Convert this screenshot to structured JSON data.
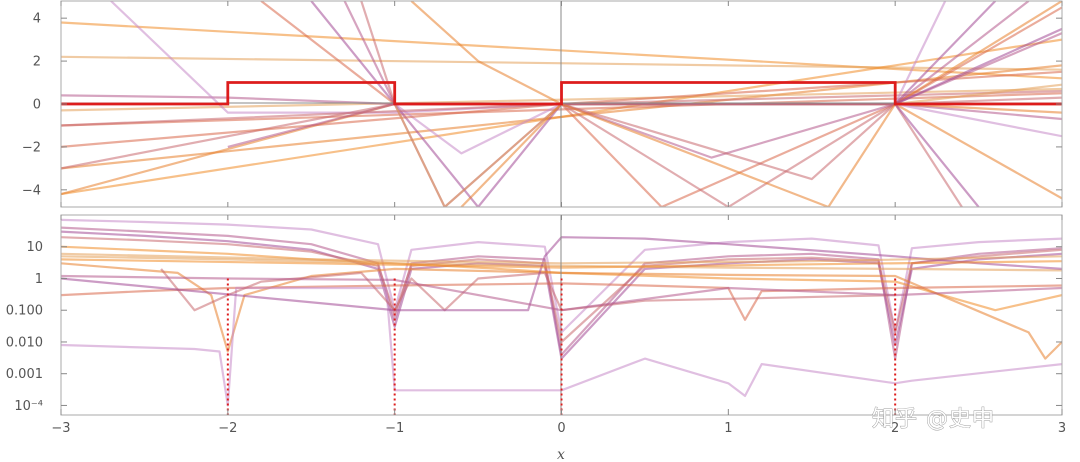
{
  "colors": {
    "indicator": "#dd1c1c",
    "palette": [
      "#f08c28",
      "#e8802c",
      "#d9674a",
      "#c96a70",
      "#b45a8c",
      "#a34a96",
      "#c78ac8",
      "#e3a05a"
    ]
  },
  "watermark": "知乎 @史中",
  "chart_data": [
    {
      "type": "line",
      "panel": "top",
      "xlabel": "",
      "ylabel": "",
      "xlim": [
        -3.0,
        3.0
      ],
      "ylim": [
        -4.8,
        4.8
      ],
      "xticks": [
        -3,
        -2,
        -1,
        0,
        1,
        2,
        3
      ],
      "yticks": [
        -4,
        -2,
        0,
        2,
        4
      ],
      "ytick_labels": [
        "−4",
        "−2",
        "0",
        "2",
        "4"
      ],
      "grid": false,
      "indicator": {
        "x": [
          -3,
          -2,
          -2,
          -1,
          -1,
          0,
          0,
          2,
          2,
          3
        ],
        "y": [
          0,
          0,
          1,
          1,
          0,
          0,
          1,
          1,
          0,
          0
        ]
      },
      "series": [
        {
          "style": 0,
          "x": [
            -3,
            3
          ],
          "y": [
            3.8,
            1.2
          ]
        },
        {
          "style": 7,
          "x": [
            -3,
            3
          ],
          "y": [
            2.2,
            1.6
          ]
        },
        {
          "style": 1,
          "x": [
            -3,
            3
          ],
          "y": [
            -3.0,
            1.8
          ]
        },
        {
          "style": 0,
          "x": [
            -3,
            3
          ],
          "y": [
            -4.2,
            3.0
          ]
        },
        {
          "style": 2,
          "x": [
            -3,
            3
          ],
          "y": [
            -1.0,
            0.5
          ]
        },
        {
          "style": 7,
          "x": [
            -3,
            3
          ],
          "y": [
            -0.3,
            0.7
          ]
        },
        {
          "style": 3,
          "x": [
            -3,
            -1,
            0,
            3
          ],
          "y": [
            -3.0,
            0.0,
            0.0,
            0.6
          ]
        },
        {
          "style": 1,
          "x": [
            -3,
            -1,
            0,
            2,
            3
          ],
          "y": [
            -4.2,
            0.0,
            0.0,
            0.0,
            4.8
          ]
        },
        {
          "style": 4,
          "x": [
            -3,
            -2,
            -1,
            0,
            2,
            3
          ],
          "y": [
            0.4,
            0.3,
            0.0,
            0.0,
            0.0,
            -0.7
          ]
        },
        {
          "style": 6,
          "x": [
            -2.7,
            -2,
            -1,
            0,
            2,
            2.3
          ],
          "y": [
            4.8,
            -0.4,
            -0.4,
            0.0,
            0.0,
            4.8
          ]
        },
        {
          "style": 5,
          "x": [
            -1.5,
            -1,
            0,
            2,
            2.6
          ],
          "y": [
            4.8,
            0.0,
            0.0,
            0.0,
            4.8
          ]
        },
        {
          "style": 4,
          "x": [
            -1.3,
            -1,
            -0.7,
            0,
            2,
            2.8
          ],
          "y": [
            4.8,
            0.0,
            -4.8,
            0.0,
            0.0,
            4.8
          ]
        },
        {
          "style": 2,
          "x": [
            -1.8,
            -1,
            0,
            0.6,
            2,
            3
          ],
          "y": [
            4.8,
            0.0,
            0.0,
            -4.8,
            0.0,
            4.5
          ]
        },
        {
          "style": 3,
          "x": [
            -1.2,
            -1,
            0,
            1.0,
            2,
            2.4
          ],
          "y": [
            4.8,
            0.0,
            0.0,
            -4.8,
            0.0,
            -4.8
          ]
        },
        {
          "style": 1,
          "x": [
            -0.9,
            -0.5,
            0,
            2,
            3
          ],
          "y": [
            4.8,
            2.0,
            0.0,
            0.0,
            -4.4
          ]
        },
        {
          "style": 5,
          "x": [
            -1,
            -0.5,
            0,
            2,
            2.5
          ],
          "y": [
            0.0,
            -4.8,
            0.0,
            0.0,
            -4.8
          ]
        },
        {
          "style": 6,
          "x": [
            -1,
            -0.6,
            0,
            2,
            3
          ],
          "y": [
            0.0,
            -2.3,
            0.0,
            0.0,
            -1.5
          ]
        },
        {
          "style": 0,
          "x": [
            0,
            1.2,
            2,
            3
          ],
          "y": [
            0.0,
            0.0,
            0.0,
            0.0
          ]
        },
        {
          "style": 2,
          "x": [
            -3,
            0,
            3
          ],
          "y": [
            -2.0,
            0.0,
            1.5
          ]
        },
        {
          "style": 4,
          "x": [
            -2,
            -1,
            0,
            0.9,
            2,
            3
          ],
          "y": [
            -2.0,
            0.0,
            0.0,
            -2.5,
            0.0,
            3.3
          ]
        },
        {
          "style": 3,
          "x": [
            -3,
            0,
            1.5,
            2,
            3
          ],
          "y": [
            -1.0,
            0.0,
            -3.5,
            0.0,
            0.3
          ]
        },
        {
          "style": 7,
          "x": [
            -1,
            -0.7,
            0,
            2,
            3
          ],
          "y": [
            0.0,
            -4.8,
            0.0,
            0.0,
            0.9
          ]
        },
        {
          "style": 5,
          "x": [
            0,
            1.0,
            2,
            3
          ],
          "y": [
            0.0,
            0.0,
            0.0,
            3.5
          ]
        },
        {
          "style": 1,
          "x": [
            -0.6,
            0,
            1.6,
            2,
            3
          ],
          "y": [
            -4.8,
            0.0,
            -4.8,
            0.0,
            -0.4
          ]
        }
      ]
    },
    {
      "type": "line",
      "panel": "bottom",
      "xlabel": "x",
      "ylabel": "",
      "yscale": "log",
      "xlim": [
        -3.0,
        3.0
      ],
      "ylim": [
        5e-05,
        100
      ],
      "xticks": [
        -3,
        -2,
        -1,
        0,
        1,
        2,
        3
      ],
      "xtick_labels": [
        "−3",
        "−2",
        "−1",
        "0",
        "1",
        "2",
        "3"
      ],
      "yticks": [
        0.0001,
        0.001,
        0.01,
        0.1,
        1,
        10
      ],
      "ytick_labels": [
        "10⁻⁴",
        "0.001",
        "0.010",
        "0.100",
        "1",
        "10"
      ],
      "grid": false,
      "indicator": {
        "x": [
          -2,
          -2,
          -1,
          -1,
          0,
          0,
          2,
          2
        ],
        "y": [
          1,
          1,
          1,
          1,
          1,
          1,
          1,
          1
        ]
      },
      "dotted_x": [
        -2,
        -1,
        0,
        2
      ],
      "series": [
        {
          "style": 6,
          "x": [
            -3,
            -2.5,
            -2,
            -1.5,
            -1.1,
            -1,
            -0.9,
            -0.5,
            -0.1,
            0,
            0.5,
            1.0,
            1.5,
            1.9,
            2,
            2.1,
            2.5,
            3
          ],
          "y": [
            70,
            60,
            50,
            35,
            12,
            0.1,
            8,
            14,
            10,
            0.02,
            8,
            14,
            18,
            11,
            0.02,
            9,
            14,
            18
          ]
        },
        {
          "style": 4,
          "x": [
            -3,
            -2.5,
            -2,
            -1.5,
            -1.1,
            -1,
            -0.9,
            -0.5,
            -0.1,
            0,
            0.5,
            1.0,
            1.5,
            1.9,
            2,
            2.1,
            2.5,
            3
          ],
          "y": [
            40,
            30,
            22,
            12,
            3,
            0.05,
            3,
            5,
            4,
            0.004,
            3,
            5,
            6,
            4,
            0.003,
            3,
            6,
            9
          ]
        },
        {
          "style": 5,
          "x": [
            -3,
            -2.5,
            -2,
            -1.5,
            -1.1,
            -1,
            -0.9,
            -0.5,
            -0.1,
            0,
            0.5,
            1.0,
            1.5,
            1.9,
            2,
            2.1,
            2.5,
            3
          ],
          "y": [
            30,
            22,
            15,
            8,
            2,
            0.03,
            2,
            3,
            2.5,
            0.003,
            2,
            3,
            4,
            3,
            0.008,
            2,
            4,
            6
          ]
        },
        {
          "style": 3,
          "x": [
            -3,
            -2.5,
            -2,
            -1.5,
            -1.1,
            -1,
            -0.9,
            -0.5,
            -0.1,
            0,
            0.5,
            1.0,
            1.5,
            1.9,
            2,
            2.1,
            2.5,
            3
          ],
          "y": [
            20,
            16,
            12,
            7,
            2.5,
            0.08,
            2.5,
            4,
            3,
            0.01,
            2.5,
            4,
            4.5,
            3.5,
            0.02,
            3,
            5,
            8
          ]
        },
        {
          "style": 0,
          "x": [
            -3,
            -2,
            -1.5,
            -1,
            -0.5,
            0,
            1,
            2,
            2.6,
            3
          ],
          "y": [
            10,
            6,
            4,
            3,
            2.2,
            1.5,
            1.0,
            0.8,
            0.1,
            0.3
          ]
        },
        {
          "style": 7,
          "x": [
            -3,
            -2,
            -1,
            0,
            1,
            2,
            3
          ],
          "y": [
            5,
            4,
            3,
            2.5,
            2.2,
            2.0,
            1.8
          ]
        },
        {
          "style": 1,
          "x": [
            -3,
            -2.3,
            -2.1,
            -2,
            -1.9,
            -1.5,
            -1,
            0,
            1,
            2,
            2.8,
            2.9,
            3
          ],
          "y": [
            3,
            1.5,
            0.3,
            0.005,
            0.3,
            1.2,
            2,
            1.5,
            1.3,
            1.2,
            0.02,
            0.003,
            0.01
          ]
        },
        {
          "style": 2,
          "x": [
            -3,
            -2.5,
            -2,
            -1,
            0,
            0.5,
            1.0,
            1.1,
            1.2,
            2,
            3
          ],
          "y": [
            0.3,
            0.4,
            0.5,
            0.6,
            0.7,
            0.6,
            0.5,
            0.05,
            0.4,
            0.5,
            0.6
          ]
        },
        {
          "style": 6,
          "x": [
            -3,
            -2.2,
            -2.05,
            -2,
            -1.95,
            -1.5,
            -1.05,
            -1,
            -0.95,
            0,
            0.5,
            1.0,
            1.1,
            1.2,
            2,
            2.1,
            3
          ],
          "y": [
            0.008,
            0.006,
            0.005,
            0.0001,
            0.5,
            0.5,
            0.5,
            0.0003,
            0.0003,
            0.0003,
            0.003,
            0.0005,
            0.0002,
            0.002,
            0.0005,
            0.0006,
            0.002
          ]
        },
        {
          "style": 3,
          "x": [
            -2.4,
            -2.2,
            -2,
            -1.8,
            -1.2,
            -1,
            -0.9,
            -0.7,
            -0.5,
            -0.1,
            0,
            0.5,
            2
          ],
          "y": [
            2,
            0.1,
            0.3,
            0.8,
            1.5,
            0.1,
            1,
            0.1,
            1,
            1.5,
            0.1,
            0.2,
            0.3
          ]
        },
        {
          "style": 5,
          "x": [
            -3,
            -1,
            -0.5,
            -0.2,
            -0.1,
            0,
            0.5,
            1,
            2,
            2.5,
            3
          ],
          "y": [
            1,
            0.1,
            0.1,
            0.1,
            5,
            20,
            18,
            12,
            5,
            3,
            2
          ]
        },
        {
          "style": 4,
          "x": [
            -3,
            -2,
            -1,
            0,
            1,
            2,
            3
          ],
          "y": [
            1.2,
            1.0,
            0.9,
            0.1,
            0.5,
            0.3,
            0.5
          ]
        },
        {
          "style": 0,
          "x": [
            -3,
            -1.5,
            0,
            1.5,
            3
          ],
          "y": [
            4,
            3,
            2.2,
            2.8,
            3.5
          ]
        },
        {
          "style": 7,
          "x": [
            -3,
            -1.5,
            0,
            1.5,
            3
          ],
          "y": [
            6,
            4,
            3,
            3.5,
            5
          ]
        }
      ]
    }
  ]
}
